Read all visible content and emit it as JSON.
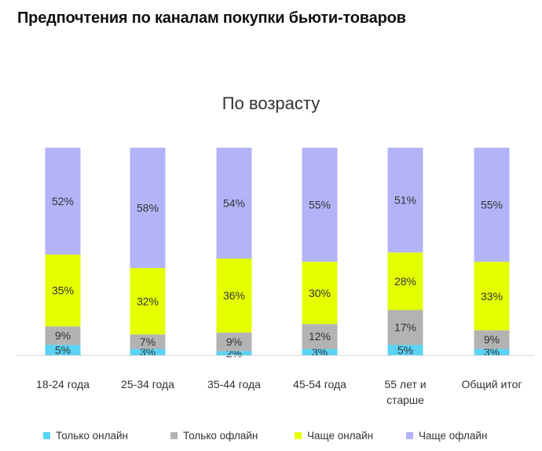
{
  "page_title": "Предпочтения по каналам покупки бьюти-товаров",
  "chart_data": {
    "type": "bar",
    "stacked": "percent",
    "title": "По возрасту",
    "categories": [
      "18-24 года",
      "25-34 года",
      "35-44 года",
      "45-54 года",
      "55 лет и старше",
      "Общий итог"
    ],
    "category_lines": [
      [
        "18-24 года"
      ],
      [
        "25-34 года"
      ],
      [
        "35-44 года"
      ],
      [
        "45-54 года"
      ],
      [
        "55 лет и",
        "старше"
      ],
      [
        "Общий итог"
      ]
    ],
    "series": [
      {
        "name": "Только онлайн",
        "color": "#5bd3f5",
        "values": [
          5,
          3,
          2,
          3,
          5,
          3
        ],
        "labels": [
          "5%",
          "3%",
          "2%",
          "3%",
          "5%",
          "3%"
        ]
      },
      {
        "name": "Только офлайн",
        "color": "#b3b3b3",
        "values": [
          9,
          7,
          9,
          12,
          17,
          9
        ],
        "labels": [
          "9%",
          "7%",
          "9%",
          "12%",
          "17%",
          "9%"
        ]
      },
      {
        "name": "Чаще онлайн",
        "color": "#e4ff00",
        "values": [
          35,
          32,
          36,
          30,
          28,
          33
        ],
        "labels": [
          "35%",
          "32%",
          "36%",
          "30%",
          "28%",
          "33%"
        ]
      },
      {
        "name": "Чаще офлайн",
        "color": "#b3b3f8",
        "values": [
          52,
          58,
          54,
          55,
          51,
          55
        ],
        "labels": [
          "52%",
          "58%",
          "54%",
          "55%",
          "51%",
          "55%"
        ]
      }
    ],
    "legend_position": "bottom",
    "grid": false
  }
}
